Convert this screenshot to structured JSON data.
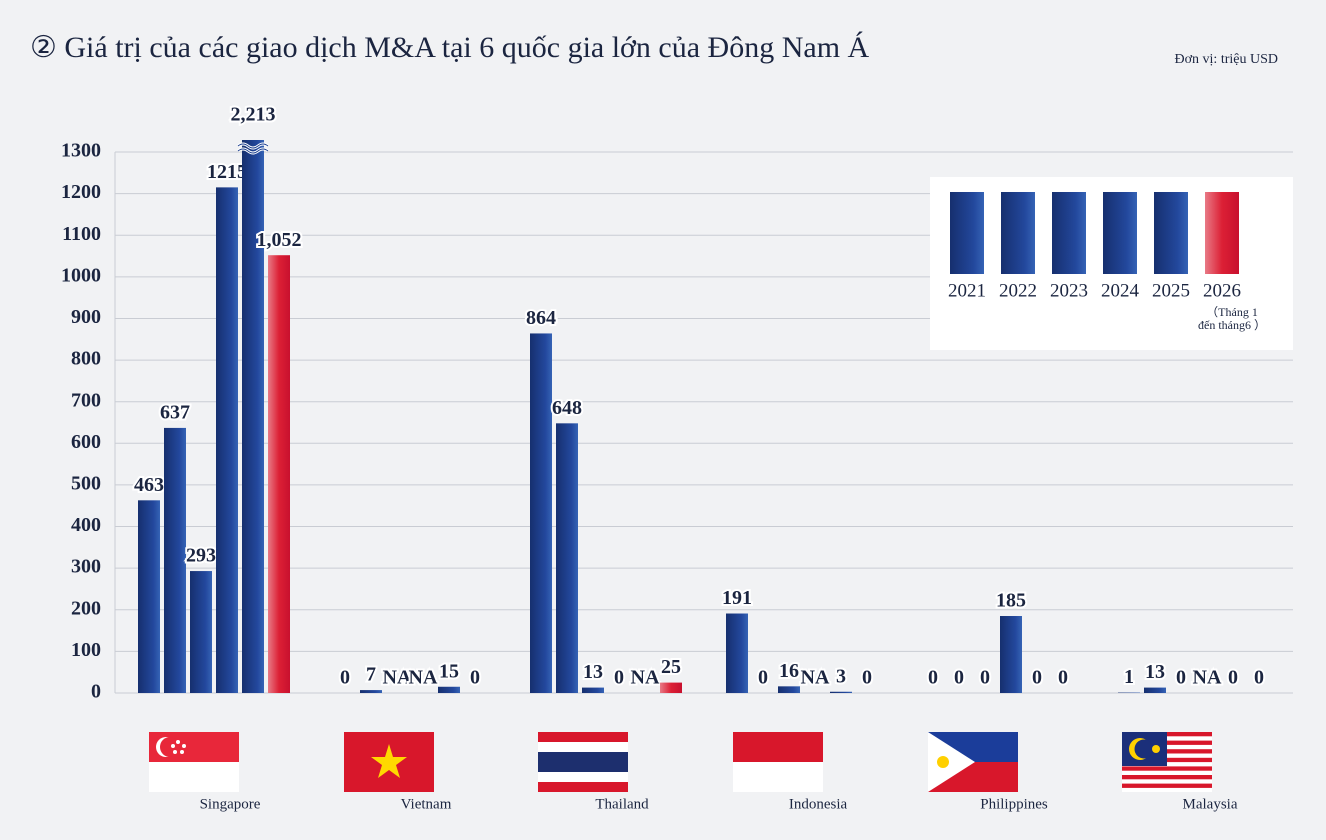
{
  "chart_data": {
    "type": "bar",
    "title": "② Giá trị của các giao dịch M&A tại 6 quốc gia lớn của Đông Nam Á",
    "unit_label": "Đơn vị: triệu USD",
    "categories": [
      "Singapore",
      "Vietnam",
      "Thailand",
      "Indonesia",
      "Philippines",
      "Malaysia"
    ],
    "series": [
      {
        "name": "2021",
        "color": "#1d3f8f",
        "values": [
          463,
          0,
          864,
          191,
          0,
          1
        ],
        "value_labels": [
          "463",
          "0",
          "864",
          "191",
          "0",
          "1"
        ]
      },
      {
        "name": "2022",
        "color": "#1d3f8f",
        "values": [
          637,
          7,
          648,
          0,
          0,
          13
        ],
        "value_labels": [
          "637",
          "7",
          "648",
          "0",
          "0",
          "13"
        ]
      },
      {
        "name": "2023",
        "color": "#1d3f8f",
        "values": [
          293,
          null,
          13,
          16,
          0,
          0
        ],
        "value_labels": [
          "293",
          "NA",
          "13",
          "16",
          "0",
          "0"
        ]
      },
      {
        "name": "2024",
        "color": "#1d3f8f",
        "values": [
          1215,
          null,
          0,
          null,
          185,
          null
        ],
        "value_labels": [
          "1215",
          "NA",
          "0",
          "NA",
          "185",
          "NA"
        ]
      },
      {
        "name": "2025",
        "color": "#1d3f8f",
        "values": [
          2213,
          15,
          null,
          3,
          0,
          0
        ],
        "value_labels": [
          "2,213",
          "15",
          "NA",
          "3",
          "0",
          "0"
        ]
      },
      {
        "name": "2026",
        "color": "#d8172b",
        "values": [
          1052,
          0,
          25,
          0,
          0,
          0
        ],
        "value_labels": [
          "1,052",
          "0",
          "25",
          "0",
          "0",
          "0"
        ]
      }
    ],
    "legend_note": [
      "（Tháng 1",
      "đến tháng6 ）"
    ],
    "ylim": [
      0,
      1300
    ],
    "yticks": [
      0,
      100,
      200,
      300,
      400,
      500,
      600,
      700,
      800,
      900,
      1000,
      1100,
      1200,
      1300
    ],
    "grid": true,
    "legend_position": "upper right"
  }
}
